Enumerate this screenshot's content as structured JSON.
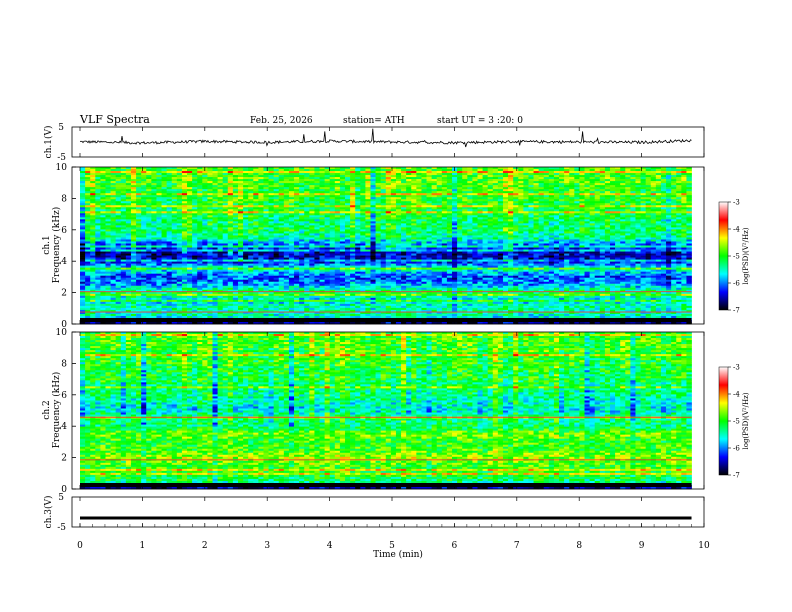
{
  "header": {
    "title": "VLF  Spectra",
    "date": "Feb. 25, 2026",
    "station": "station= ATH",
    "start_ut": "start  UT  =   3  :20: 0"
  },
  "colorbar": {
    "label": "log(PSD)(V²/Hz)",
    "ticks": [
      "-3",
      "-4",
      "-5",
      "-6",
      "-7"
    ],
    "colors": [
      "#ffffff",
      "#ff0000",
      "#ffff00",
      "#00ff00",
      "#00ffff",
      "#0000ff",
      "#000000"
    ]
  },
  "chart_data": [
    {
      "type": "line",
      "panel": "ch1-waveform",
      "ylabel": "ch.1(V)",
      "ylim": [
        -5,
        5
      ],
      "yticks": [
        "5",
        "-5"
      ],
      "xlim": [
        0,
        10
      ],
      "series": [
        {
          "x": [
            0,
            1,
            2,
            3,
            4,
            5,
            6,
            7,
            8,
            9,
            9.8
          ],
          "values": [
            0.1,
            -0.3,
            0.2,
            -0.1,
            0.3,
            0,
            -0.2,
            0.1,
            0,
            -0.1,
            0.5
          ]
        }
      ]
    },
    {
      "type": "heatmap",
      "panel": "ch1-spectrogram",
      "ylabel": "ch.1\nFrequency  (kHz)",
      "ylabel_line1": "ch.1",
      "ylabel_line2": "Frequency  (kHz)",
      "ylim": [
        0,
        10
      ],
      "yticks": [
        "10",
        "8",
        "6",
        "4",
        "2",
        "0"
      ],
      "xlim": [
        0,
        9.8
      ],
      "colorbar_range": [
        -7,
        -3
      ],
      "freq_profile_khz": [
        0,
        0.5,
        1,
        1.5,
        2,
        2.5,
        3,
        3.5,
        4,
        4.5,
        5,
        5.5,
        6,
        6.5,
        7,
        7.5,
        8,
        8.5,
        9,
        9.5,
        10
      ],
      "freq_profile_logpsd": [
        -6.9,
        -5.5,
        -5.4,
        -5.7,
        -5.2,
        -5.9,
        -6.2,
        -5.5,
        -6.4,
        -6.5,
        -6.1,
        -5.4,
        -5.2,
        -5.3,
        -5.1,
        -5.1,
        -5.0,
        -5.0,
        -4.9,
        -4.9,
        -4.9
      ]
    },
    {
      "type": "heatmap",
      "panel": "ch2-spectrogram",
      "ylabel": "ch.2\nFrequency  (kHz)",
      "ylabel_line1": "ch.2",
      "ylabel_line2": "Frequency  (kHz)",
      "ylim": [
        0,
        10
      ],
      "yticks": [
        "10",
        "8",
        "6",
        "4",
        "2",
        "0"
      ],
      "xlim": [
        0,
        9.8
      ],
      "colorbar_range": [
        -7,
        -3
      ],
      "freq_profile_khz": [
        0,
        0.5,
        1,
        1.5,
        2,
        2.5,
        3,
        3.5,
        4,
        4.5,
        5,
        5.5,
        6,
        6.5,
        7,
        7.5,
        8,
        8.5,
        9,
        9.5,
        10
      ],
      "freq_profile_logpsd": [
        -6.8,
        -5.2,
        -5.0,
        -4.9,
        -4.6,
        -4.9,
        -5.0,
        -4.7,
        -5.3,
        -5.2,
        -5.6,
        -5.5,
        -5.3,
        -5.3,
        -5.1,
        -5.1,
        -5.0,
        -5.0,
        -4.9,
        -4.9,
        -4.9
      ]
    },
    {
      "type": "line",
      "panel": "ch3-waveform",
      "ylabel": "ch.3(V)",
      "ylim": [
        -5,
        5
      ],
      "yticks": [
        "5",
        "-5"
      ],
      "xlim": [
        0,
        10
      ],
      "series": [
        {
          "x": [
            0,
            9.8
          ],
          "values": [
            -2,
            -2
          ]
        }
      ]
    }
  ],
  "xaxis": {
    "label": "Time  (min)",
    "range": [
      0,
      10
    ],
    "ticks": [
      "0",
      "1",
      "2",
      "3",
      "4",
      "5",
      "6",
      "7",
      "8",
      "9",
      "10"
    ]
  }
}
